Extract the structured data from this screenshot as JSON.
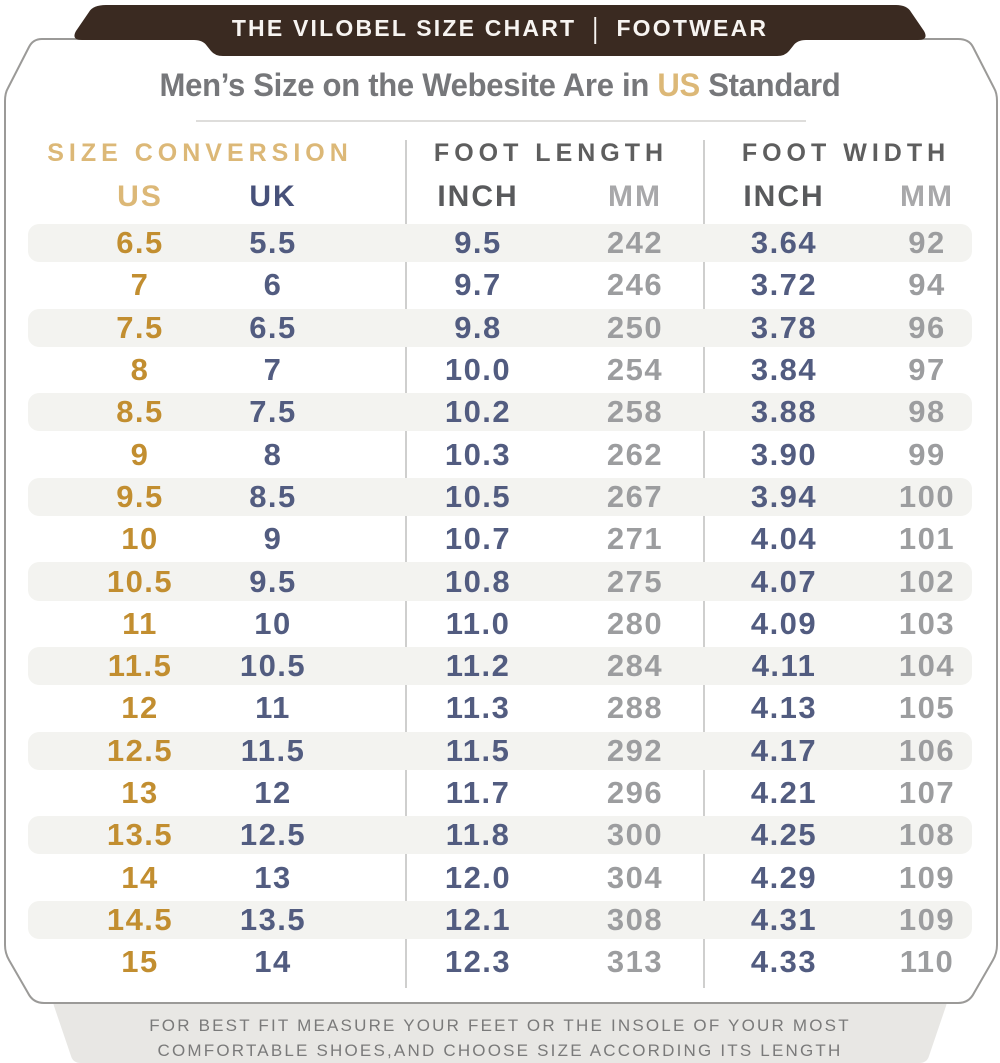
{
  "banner": {
    "title": "THE VILOBEL SIZE CHART",
    "separator": "|",
    "category": "FOOTWEAR"
  },
  "title": {
    "prefix": "Men’s Size on the Webesite Are in ",
    "highlight": "US",
    "suffix": " Standard"
  },
  "table": {
    "group_headers": [
      {
        "label": "SIZE CONVERSION"
      },
      {
        "label": "FOOT LENGTH"
      },
      {
        "label": "FOOT WIDTH"
      }
    ],
    "column_headers": [
      "US",
      "UK",
      "INCH",
      "MM",
      "INCH",
      "MM"
    ],
    "rows": [
      [
        "6.5",
        "5.5",
        "9.5",
        "242",
        "3.64",
        "92"
      ],
      [
        "7",
        "6",
        "9.7",
        "246",
        "3.72",
        "94"
      ],
      [
        "7.5",
        "6.5",
        "9.8",
        "250",
        "3.78",
        "96"
      ],
      [
        "8",
        "7",
        "10.0",
        "254",
        "3.84",
        "97"
      ],
      [
        "8.5",
        "7.5",
        "10.2",
        "258",
        "3.88",
        "98"
      ],
      [
        "9",
        "8",
        "10.3",
        "262",
        "3.90",
        "99"
      ],
      [
        "9.5",
        "8.5",
        "10.5",
        "267",
        "3.94",
        "100"
      ],
      [
        "10",
        "9",
        "10.7",
        "271",
        "4.04",
        "101"
      ],
      [
        "10.5",
        "9.5",
        "10.8",
        "275",
        "4.07",
        "102"
      ],
      [
        "11",
        "10",
        "11.0",
        "280",
        "4.09",
        "103"
      ],
      [
        "11.5",
        "10.5",
        "11.2",
        "284",
        "4.11",
        "104"
      ],
      [
        "12",
        "11",
        "11.3",
        "288",
        "4.13",
        "105"
      ],
      [
        "12.5",
        "11.5",
        "11.5",
        "292",
        "4.17",
        "106"
      ],
      [
        "13",
        "12",
        "11.7",
        "296",
        "4.21",
        "107"
      ],
      [
        "13.5",
        "12.5",
        "11.8",
        "300",
        "4.25",
        "108"
      ],
      [
        "14",
        "13",
        "12.0",
        "304",
        "4.29",
        "109"
      ],
      [
        "14.5",
        "13.5",
        "12.1",
        "308",
        "4.31",
        "109"
      ],
      [
        "15",
        "14",
        "12.3",
        "313",
        "4.33",
        "110"
      ]
    ]
  },
  "note": {
    "line1": "FOR BEST FIT MEASURE YOUR FEET OR THE INSOLE OF YOUR MOST",
    "line2": "COMFORTABLE SHOES,AND CHOOSE SIZE ACCORDING ITS LENGTH"
  },
  "colors": {
    "banner_bg": "#3a2a21",
    "banner_text": "#f7f4f1",
    "title_text": "#76777a",
    "gold_header": "#dcb877",
    "gold_data": "#c28e30",
    "navy": "#525c80",
    "dark_header": "#5e5e5e",
    "gray_text": "#9c9d9f",
    "stripe": "#f3f3f0",
    "card_border": "#9b9a98",
    "note_bg": "#e8e7e4",
    "note_text": "#7a7a7a"
  }
}
